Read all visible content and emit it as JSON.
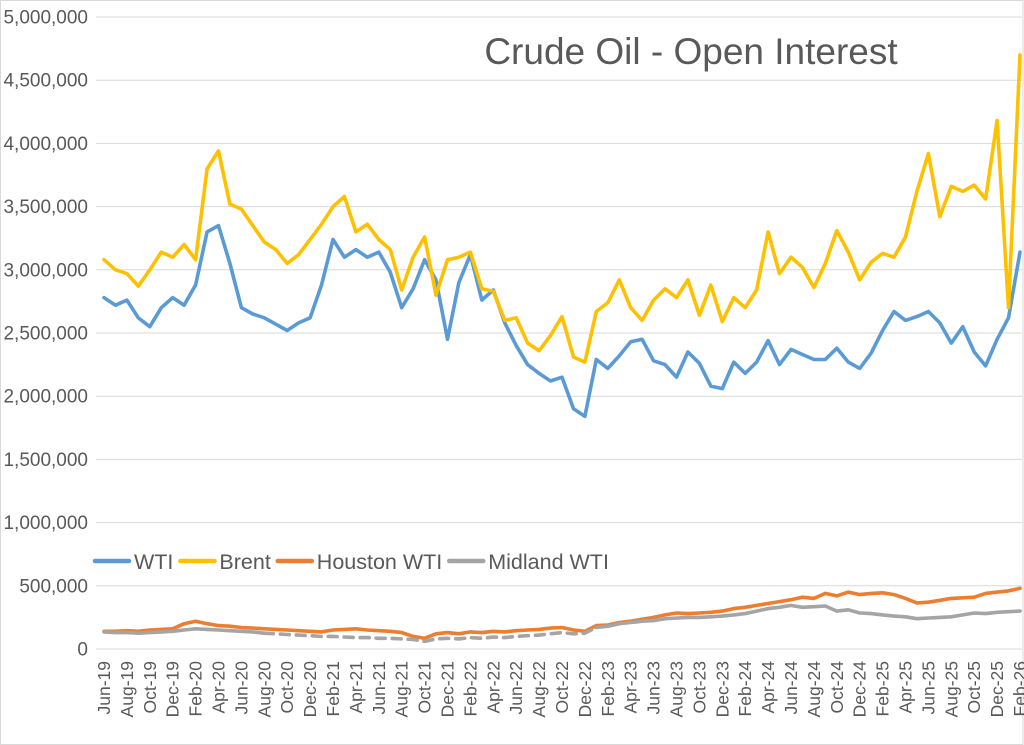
{
  "title": "Crude Oil - Open Interest",
  "colors": {
    "wti": "#5B9BD5",
    "brent": "#FFC000",
    "houston_wti": "#ED7D31",
    "midland_wti": "#A5A5A5",
    "text": "#595959",
    "gridline": "#D9D9D9",
    "background": "#FFFFFF"
  },
  "chart_data": {
    "type": "line",
    "title": "Crude Oil - Open Interest",
    "grid": true,
    "legend_position": "inside-left, above 500,000 gridline",
    "ylim": [
      0,
      5000000
    ],
    "ytick_step": 500000,
    "y_tick_labels": [
      "5,000,000",
      "4,500,000",
      "4,000,000",
      "3,500,000",
      "3,000,000",
      "2,500,000",
      "2,000,000",
      "1,500,000",
      "1,000,000",
      "500,000",
      "0"
    ],
    "x_tick_labels": [
      "Jun-19",
      "Aug-19",
      "Oct-19",
      "Dec-19",
      "Feb-20",
      "Apr-20",
      "Jun-20",
      "Aug-20",
      "Oct-20",
      "Dec-20",
      "Feb-21",
      "Apr-21",
      "Jun-21",
      "Aug-21",
      "Oct-21",
      "Dec-21",
      "Feb-22",
      "Apr-22",
      "Jun-22",
      "Aug-22",
      "Oct-22",
      "Dec-22",
      "Feb-23",
      "Apr-23",
      "Jun-23",
      "Aug-23",
      "Oct-23",
      "Dec-23",
      "Feb-24",
      "Apr-24",
      "Jun-24",
      "Aug-24",
      "Oct-24",
      "Dec-24",
      "Feb-25",
      "Apr-25",
      "Jun-25",
      "Aug-25",
      "Oct-25",
      "Dec-25",
      "Feb-26"
    ],
    "x": [
      "Jun-19",
      "Jul-19",
      "Aug-19",
      "Sep-19",
      "Oct-19",
      "Nov-19",
      "Dec-19",
      "Jan-20",
      "Feb-20",
      "Mar-20",
      "Apr-20",
      "May-20",
      "Jun-20",
      "Jul-20",
      "Aug-20",
      "Sep-20",
      "Oct-20",
      "Nov-20",
      "Dec-20",
      "Jan-21",
      "Feb-21",
      "Mar-21",
      "Apr-21",
      "May-21",
      "Jun-21",
      "Jul-21",
      "Aug-21",
      "Sep-21",
      "Oct-21",
      "Nov-21",
      "Dec-21",
      "Jan-22",
      "Feb-22",
      "Mar-22",
      "Apr-22",
      "May-22",
      "Jun-22",
      "Jul-22",
      "Aug-22",
      "Sep-22",
      "Oct-22",
      "Nov-22",
      "Dec-22",
      "Jan-23",
      "Feb-23",
      "Mar-23",
      "Apr-23",
      "May-23",
      "Jun-23",
      "Jul-23",
      "Aug-23",
      "Sep-23",
      "Oct-23",
      "Nov-23",
      "Dec-23",
      "Jan-24",
      "Feb-24",
      "Mar-24",
      "Apr-24",
      "May-24",
      "Jun-24",
      "Jul-24",
      "Aug-24",
      "Sep-24",
      "Oct-24",
      "Nov-24",
      "Dec-24",
      "Jan-25",
      "Feb-25",
      "Mar-25",
      "Apr-25",
      "May-25",
      "Jun-25",
      "Jul-25",
      "Aug-25",
      "Sep-25",
      "Oct-25",
      "Nov-25",
      "Dec-25",
      "Jan-26",
      "Feb-26"
    ],
    "series": [
      {
        "name": "WTI",
        "color": "#5B9BD5",
        "style": "solid",
        "values": [
          2780000,
          2720000,
          2760000,
          2620000,
          2550000,
          2700000,
          2780000,
          2720000,
          2880000,
          3300000,
          3350000,
          3050000,
          2700000,
          2650000,
          2620000,
          2570000,
          2520000,
          2580000,
          2620000,
          2880000,
          3240000,
          3100000,
          3160000,
          3100000,
          3140000,
          2980000,
          2700000,
          2850000,
          3080000,
          2920000,
          2450000,
          2900000,
          3120000,
          2760000,
          2840000,
          2580000,
          2400000,
          2250000,
          2180000,
          2120000,
          2150000,
          1900000,
          1840000,
          2290000,
          2220000,
          2320000,
          2430000,
          2450000,
          2280000,
          2250000,
          2150000,
          2350000,
          2260000,
          2080000,
          2060000,
          2270000,
          2180000,
          2270000,
          2440000,
          2250000,
          2370000,
          2330000,
          2290000,
          2290000,
          2380000,
          2270000,
          2220000,
          2340000,
          2520000,
          2670000,
          2600000,
          2630000,
          2670000,
          2580000,
          2420000,
          2550000,
          2350000,
          2240000,
          2450000,
          2620000,
          3140000
        ]
      },
      {
        "name": "Brent",
        "color": "#FFC000",
        "style": "solid",
        "values": [
          3080000,
          3000000,
          2970000,
          2870000,
          3000000,
          3140000,
          3100000,
          3200000,
          3080000,
          3800000,
          3940000,
          3520000,
          3480000,
          3350000,
          3220000,
          3160000,
          3050000,
          3120000,
          3240000,
          3360000,
          3500000,
          3580000,
          3300000,
          3360000,
          3240000,
          3160000,
          2840000,
          3100000,
          3260000,
          2800000,
          3080000,
          3100000,
          3140000,
          2850000,
          2830000,
          2600000,
          2620000,
          2420000,
          2360000,
          2480000,
          2630000,
          2310000,
          2270000,
          2670000,
          2740000,
          2920000,
          2700000,
          2600000,
          2760000,
          2850000,
          2780000,
          2920000,
          2640000,
          2880000,
          2590000,
          2780000,
          2700000,
          2840000,
          3300000,
          2970000,
          3100000,
          3020000,
          2860000,
          3050000,
          3310000,
          3140000,
          2920000,
          3060000,
          3130000,
          3100000,
          3260000,
          3620000,
          3920000,
          3420000,
          3660000,
          3620000,
          3670000,
          3560000,
          4180000,
          2700000,
          4700000
        ]
      },
      {
        "name": "Houston WTI",
        "color": "#ED7D31",
        "style": "solid",
        "values": [
          140000,
          140000,
          145000,
          140000,
          150000,
          155000,
          160000,
          200000,
          220000,
          200000,
          185000,
          180000,
          170000,
          165000,
          160000,
          155000,
          150000,
          145000,
          140000,
          135000,
          150000,
          155000,
          160000,
          150000,
          145000,
          140000,
          130000,
          100000,
          85000,
          120000,
          130000,
          120000,
          135000,
          130000,
          140000,
          135000,
          145000,
          150000,
          155000,
          165000,
          170000,
          150000,
          140000,
          185000,
          190000,
          210000,
          220000,
          235000,
          250000,
          270000,
          285000,
          280000,
          285000,
          290000,
          300000,
          320000,
          330000,
          345000,
          360000,
          375000,
          390000,
          410000,
          400000,
          440000,
          420000,
          450000,
          430000,
          440000,
          445000,
          430000,
          400000,
          365000,
          370000,
          385000,
          400000,
          405000,
          410000,
          440000,
          450000,
          460000,
          480000
        ]
      },
      {
        "name": "Midland WTI",
        "color": "#A5A5A5",
        "style": "solid-with-dashed-middle",
        "dashed_range": [
          14,
          43
        ],
        "values": [
          135000,
          130000,
          130000,
          125000,
          130000,
          135000,
          140000,
          150000,
          160000,
          155000,
          150000,
          145000,
          140000,
          135000,
          125000,
          120000,
          115000,
          110000,
          105000,
          100000,
          100000,
          95000,
          90000,
          90000,
          85000,
          85000,
          80000,
          75000,
          60000,
          80000,
          85000,
          80000,
          90000,
          85000,
          95000,
          90000,
          100000,
          105000,
          110000,
          120000,
          130000,
          120000,
          125000,
          170000,
          180000,
          200000,
          210000,
          220000,
          225000,
          240000,
          245000,
          250000,
          250000,
          255000,
          260000,
          270000,
          280000,
          300000,
          320000,
          330000,
          345000,
          330000,
          335000,
          340000,
          300000,
          310000,
          285000,
          280000,
          270000,
          260000,
          255000,
          240000,
          245000,
          250000,
          255000,
          270000,
          285000,
          280000,
          290000,
          295000,
          300000
        ]
      }
    ]
  }
}
